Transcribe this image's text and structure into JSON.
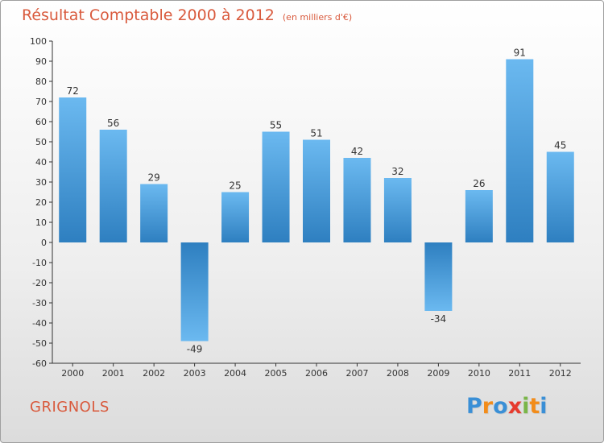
{
  "title": "Résultat Comptable 2000 à 2012",
  "unit_label": "(en milliers d'€)",
  "place_name": "GRIGNOLS",
  "logo": {
    "letters": [
      "P",
      "r",
      "o",
      "x",
      "i",
      "t",
      "i"
    ],
    "colors": [
      "#3a8fd6",
      "#f28c1a",
      "#3a8fd6",
      "#e63b2e",
      "#7ab648",
      "#f28c1a",
      "#3a8fd6"
    ]
  },
  "colors": {
    "bar_top": "#6bb9f0",
    "bar_bottom": "#2e7fc0",
    "axis": "#333333",
    "text": "#333333"
  },
  "chart_data": {
    "type": "bar",
    "categories": [
      "2000",
      "2001",
      "2002",
      "2003",
      "2004",
      "2005",
      "2006",
      "2007",
      "2008",
      "2009",
      "2010",
      "2011",
      "2012"
    ],
    "values": [
      72,
      56,
      29,
      -49,
      25,
      55,
      51,
      42,
      32,
      -34,
      26,
      91,
      45
    ],
    "title": "Résultat Comptable 2000 à 2012",
    "xlabel": "",
    "ylabel": "",
    "ylim": [
      -60,
      100
    ],
    "yticks": [
      100,
      90,
      80,
      70,
      60,
      50,
      40,
      30,
      20,
      10,
      0,
      -10,
      -20,
      -30,
      -40,
      -50,
      -60
    ],
    "grid": false,
    "legend": "none"
  }
}
